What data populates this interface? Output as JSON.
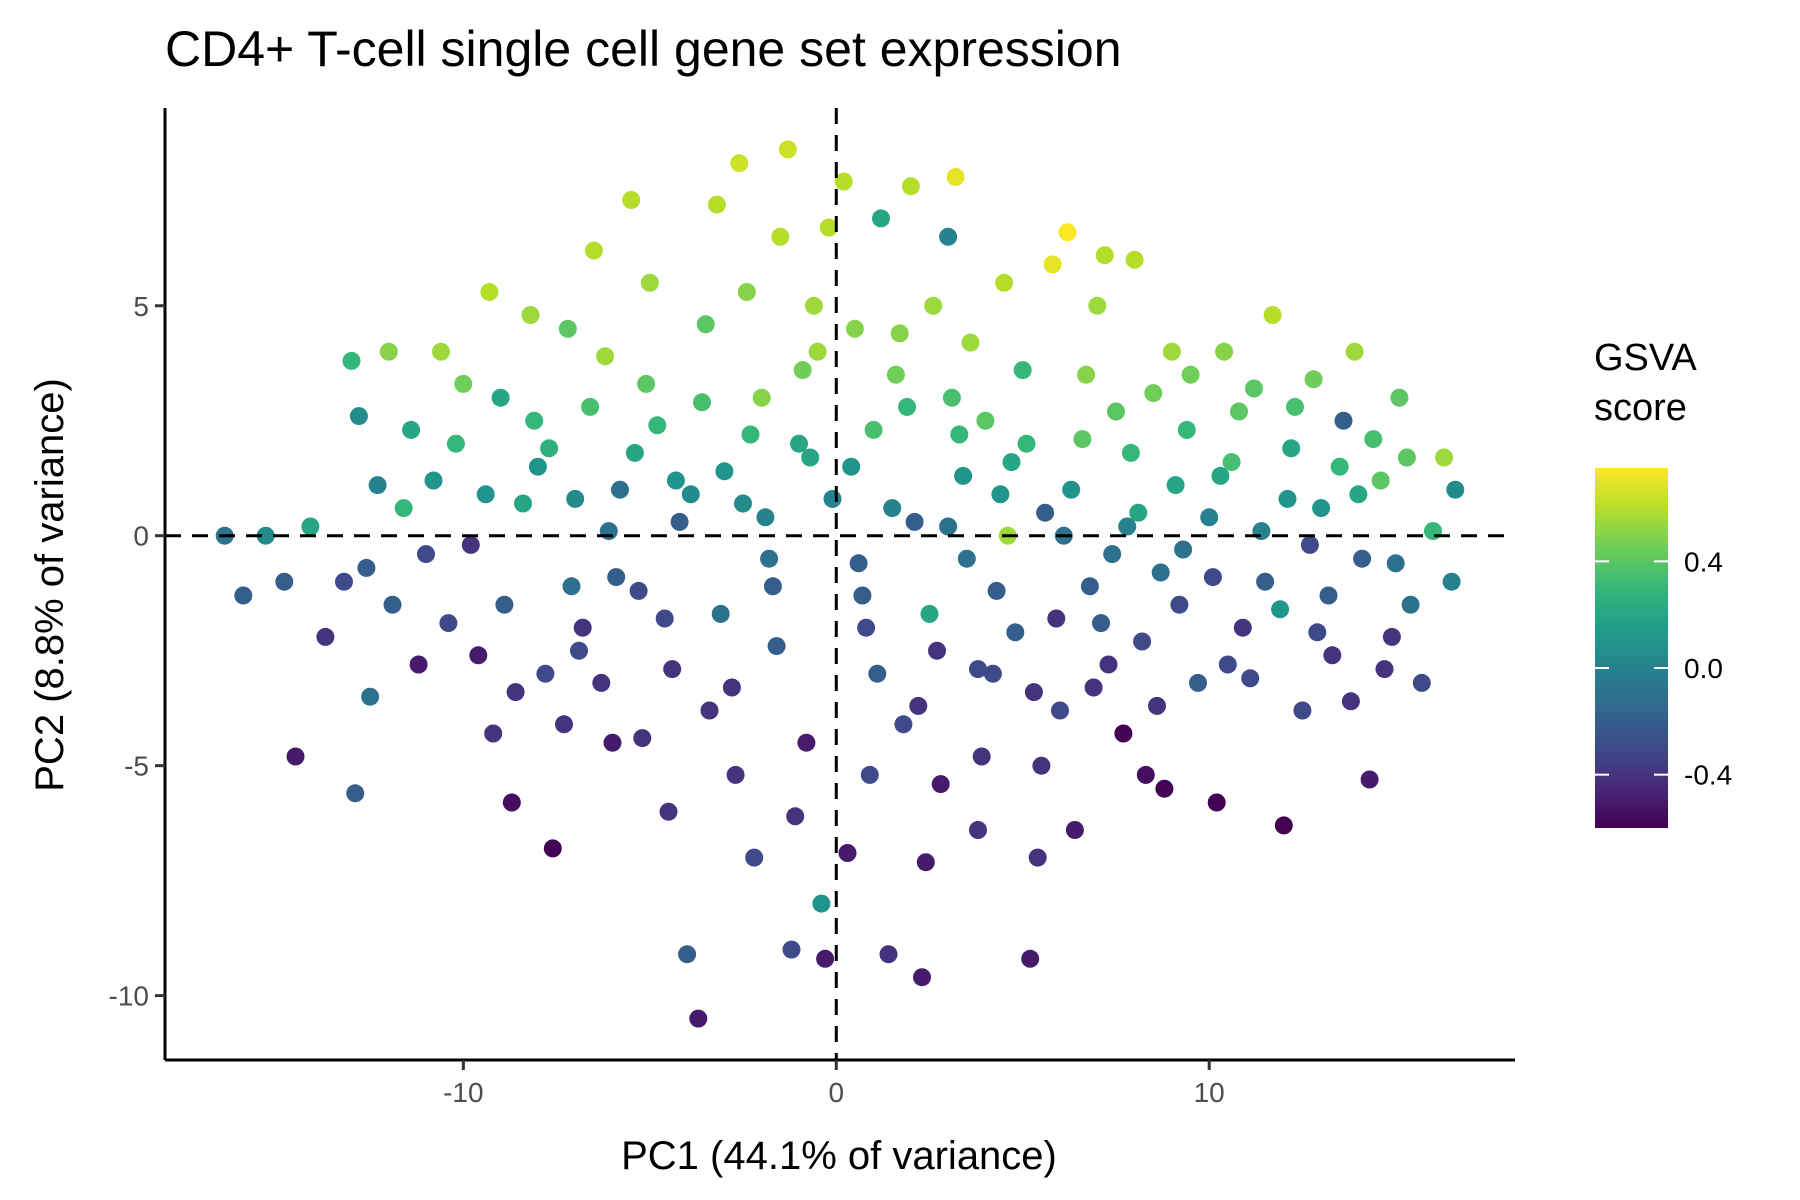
{
  "chart_data": {
    "type": "scatter",
    "title": "CD4+ T-cell single cell gene set expression",
    "xlabel": "PC1 (44.1% of variance)",
    "ylabel": "PC2 (8.8% of variance)",
    "xlim": [
      -18,
      18.2
    ],
    "ylim": [
      -11.4,
      9.3
    ],
    "x_ticks": [
      {
        "value": -10,
        "label": "-10"
      },
      {
        "value": 0,
        "label": "0"
      },
      {
        "value": 10,
        "label": "10"
      }
    ],
    "y_ticks": [
      {
        "value": -10,
        "label": "-10"
      },
      {
        "value": -5,
        "label": "-5"
      },
      {
        "value": 0,
        "label": "0"
      },
      {
        "value": 5,
        "label": "5"
      }
    ],
    "reference_lines": [
      {
        "orientation": "horizontal",
        "value": 0,
        "style": "dashed"
      },
      {
        "orientation": "vertical",
        "value": 0,
        "style": "dashed"
      }
    ],
    "grid": false,
    "color_scale": {
      "palette": "viridis",
      "title_lines": [
        "GSVA",
        "score"
      ],
      "min": -0.6,
      "max": 0.75,
      "ticks": [
        {
          "value": 0.4,
          "label": "0.4"
        },
        {
          "value": 0.0,
          "label": "0.0"
        },
        {
          "value": -0.4,
          "label": "-0.4"
        }
      ],
      "stops": [
        "#440154",
        "#482878",
        "#3e4a89",
        "#31688e",
        "#26828e",
        "#1f9e89",
        "#35b779",
        "#6ece58",
        "#b5de2b",
        "#fde725"
      ],
      "legend_position": "right"
    },
    "points": [
      [
        -16.4,
        0.0,
        -0.1
      ],
      [
        -15.3,
        0.0,
        0.05
      ],
      [
        -15.9,
        -1.3,
        -0.2
      ],
      [
        -14.1,
        0.2,
        0.2
      ],
      [
        -14.5,
        -4.8,
        -0.5
      ],
      [
        -13.0,
        3.8,
        0.3
      ],
      [
        -12.8,
        2.6,
        0.05
      ],
      [
        -13.2,
        -1.0,
        -0.3
      ],
      [
        -12.5,
        -3.5,
        -0.1
      ],
      [
        -12.9,
        -5.6,
        -0.2
      ],
      [
        -12.0,
        4.0,
        0.5
      ],
      [
        -11.6,
        0.6,
        0.3
      ],
      [
        -11.2,
        -2.8,
        -0.5
      ],
      [
        -10.6,
        4.0,
        0.55
      ],
      [
        -10.2,
        2.0,
        0.3
      ],
      [
        -9.8,
        -0.2,
        -0.4
      ],
      [
        -9.3,
        5.3,
        0.6
      ],
      [
        -9.0,
        3.0,
        0.2
      ],
      [
        -8.9,
        -1.5,
        -0.2
      ],
      [
        -8.7,
        -5.8,
        -0.55
      ],
      [
        -8.2,
        4.8,
        0.55
      ],
      [
        -8.0,
        1.5,
        0.1
      ],
      [
        -7.8,
        -3.0,
        -0.3
      ],
      [
        -7.6,
        -6.8,
        -0.6
      ],
      [
        -7.2,
        4.5,
        0.4
      ],
      [
        -7.0,
        0.8,
        0.05
      ],
      [
        -6.8,
        -2.0,
        -0.4
      ],
      [
        -6.5,
        6.2,
        0.6
      ],
      [
        -6.2,
        3.9,
        0.55
      ],
      [
        -6.0,
        -4.5,
        -0.5
      ],
      [
        -5.8,
        1.0,
        -0.1
      ],
      [
        -5.5,
        7.3,
        0.6
      ],
      [
        -5.3,
        -1.2,
        -0.3
      ],
      [
        -5.0,
        5.5,
        0.55
      ],
      [
        -4.8,
        2.4,
        0.3
      ],
      [
        -4.5,
        -6.0,
        -0.4
      ],
      [
        -4.2,
        0.3,
        -0.2
      ],
      [
        -4.0,
        -9.1,
        -0.2
      ],
      [
        -3.7,
        -10.5,
        -0.5
      ],
      [
        -3.5,
        4.6,
        0.4
      ],
      [
        -3.2,
        7.2,
        0.6
      ],
      [
        -3.0,
        1.4,
        0.1
      ],
      [
        -2.8,
        -3.3,
        -0.4
      ],
      [
        -2.6,
        8.1,
        0.65
      ],
      [
        -2.4,
        5.3,
        0.5
      ],
      [
        -2.2,
        -7.0,
        -0.3
      ],
      [
        -2.0,
        3.0,
        0.5
      ],
      [
        -1.8,
        -0.5,
        -0.1
      ],
      [
        -1.5,
        6.5,
        0.6
      ],
      [
        -1.3,
        8.4,
        0.65
      ],
      [
        -1.2,
        -9.0,
        -0.3
      ],
      [
        -1.0,
        2.0,
        0.2
      ],
      [
        -0.8,
        -4.5,
        -0.5
      ],
      [
        -0.6,
        5.0,
        0.55
      ],
      [
        -0.4,
        -8.0,
        0.1
      ],
      [
        -0.3,
        -9.2,
        -0.5
      ],
      [
        -0.2,
        6.7,
        0.6
      ],
      [
        -0.1,
        0.8,
        0.0
      ],
      [
        0.2,
        7.7,
        0.6
      ],
      [
        0.3,
        -6.9,
        -0.5
      ],
      [
        0.5,
        4.5,
        0.5
      ],
      [
        0.6,
        -0.6,
        -0.2
      ],
      [
        0.8,
        -2.0,
        -0.3
      ],
      [
        1.0,
        2.3,
        0.35
      ],
      [
        1.2,
        6.9,
        0.2
      ],
      [
        1.4,
        -9.1,
        -0.4
      ],
      [
        1.6,
        3.5,
        0.45
      ],
      [
        1.8,
        -4.1,
        -0.3
      ],
      [
        2.0,
        7.6,
        0.6
      ],
      [
        2.1,
        0.3,
        -0.2
      ],
      [
        2.3,
        -9.6,
        -0.5
      ],
      [
        2.5,
        -1.7,
        0.2
      ],
      [
        2.6,
        5.0,
        0.55
      ],
      [
        2.8,
        -5.4,
        -0.5
      ],
      [
        3.0,
        6.5,
        0.0
      ],
      [
        3.2,
        7.8,
        0.7
      ],
      [
        3.3,
        2.2,
        0.3
      ],
      [
        3.5,
        -0.5,
        -0.1
      ],
      [
        3.6,
        4.2,
        0.55
      ],
      [
        3.8,
        -6.4,
        -0.4
      ],
      [
        4.0,
        2.5,
        0.4
      ],
      [
        4.2,
        -3.0,
        -0.3
      ],
      [
        4.5,
        5.5,
        0.6
      ],
      [
        4.6,
        0.0,
        0.55
      ],
      [
        4.8,
        -2.1,
        -0.2
      ],
      [
        5.0,
        3.6,
        0.3
      ],
      [
        5.2,
        -9.2,
        -0.5
      ],
      [
        5.4,
        -7.0,
        -0.4
      ],
      [
        5.6,
        0.5,
        -0.2
      ],
      [
        5.8,
        5.9,
        0.7
      ],
      [
        6.0,
        -3.8,
        -0.3
      ],
      [
        6.2,
        6.6,
        0.75
      ],
      [
        6.4,
        -6.4,
        -0.5
      ],
      [
        6.6,
        2.1,
        0.4
      ],
      [
        6.8,
        -1.1,
        -0.2
      ],
      [
        7.0,
        5.0,
        0.55
      ],
      [
        7.2,
        6.1,
        0.6
      ],
      [
        7.3,
        -2.8,
        -0.4
      ],
      [
        7.5,
        2.7,
        0.4
      ],
      [
        7.7,
        -4.3,
        -0.6
      ],
      [
        8.0,
        6.0,
        0.6
      ],
      [
        8.1,
        0.5,
        0.2
      ],
      [
        8.3,
        -5.2,
        -0.55
      ],
      [
        8.5,
        3.1,
        0.45
      ],
      [
        8.8,
        -5.5,
        -0.6
      ],
      [
        9.0,
        4.0,
        0.55
      ],
      [
        9.2,
        -1.5,
        -0.3
      ],
      [
        9.4,
        2.3,
        0.3
      ],
      [
        9.7,
        -3.2,
        -0.2
      ],
      [
        10.0,
        0.4,
        0.0
      ],
      [
        10.2,
        -5.8,
        -0.6
      ],
      [
        10.4,
        4.0,
        0.5
      ],
      [
        10.6,
        1.6,
        0.35
      ],
      [
        10.9,
        -2.0,
        -0.4
      ],
      [
        11.2,
        3.2,
        0.4
      ],
      [
        11.5,
        -1.0,
        -0.2
      ],
      [
        11.7,
        4.8,
        0.6
      ],
      [
        12.0,
        -6.3,
        -0.6
      ],
      [
        12.2,
        1.9,
        0.2
      ],
      [
        12.5,
        -3.8,
        -0.3
      ],
      [
        12.8,
        3.4,
        0.45
      ],
      [
        13.0,
        0.6,
        0.1
      ],
      [
        13.3,
        -2.6,
        -0.4
      ],
      [
        13.6,
        2.5,
        -0.2
      ],
      [
        13.9,
        4.0,
        0.55
      ],
      [
        14.1,
        -0.5,
        -0.2
      ],
      [
        14.3,
        -5.3,
        -0.5
      ],
      [
        14.6,
        1.2,
        0.4
      ],
      [
        14.9,
        -2.2,
        -0.4
      ],
      [
        15.1,
        3.0,
        0.4
      ],
      [
        15.4,
        -1.5,
        -0.1
      ],
      [
        15.7,
        -3.2,
        -0.3
      ],
      [
        16.0,
        0.1,
        0.3
      ],
      [
        16.3,
        1.7,
        0.55
      ],
      [
        16.6,
        1.0,
        0.05
      ],
      [
        16.5,
        -1.0,
        0.0
      ],
      [
        -11.9,
        -1.5,
        -0.2
      ],
      [
        -10.8,
        1.2,
        0.1
      ],
      [
        -9.6,
        -2.6,
        -0.5
      ],
      [
        -8.4,
        0.7,
        0.2
      ],
      [
        -7.3,
        -4.1,
        -0.4
      ],
      [
        -6.6,
        2.8,
        0.35
      ],
      [
        -5.9,
        -0.9,
        -0.2
      ],
      [
        -5.1,
        3.3,
        0.4
      ],
      [
        -4.4,
        -2.9,
        -0.4
      ],
      [
        -3.9,
        0.9,
        0.05
      ],
      [
        -3.1,
        -1.7,
        -0.1
      ],
      [
        -2.3,
        2.2,
        0.3
      ],
      [
        -1.6,
        -2.4,
        -0.2
      ],
      [
        -0.9,
        3.6,
        0.45
      ],
      [
        0.4,
        1.5,
        0.1
      ],
      [
        1.1,
        -3.0,
        -0.2
      ],
      [
        1.9,
        2.8,
        0.3
      ],
      [
        2.7,
        -2.5,
        -0.4
      ],
      [
        3.4,
        1.3,
        0.1
      ],
      [
        4.3,
        -1.2,
        -0.2
      ],
      [
        5.1,
        2.0,
        0.3
      ],
      [
        5.9,
        -1.8,
        -0.4
      ],
      [
        6.7,
        3.5,
        0.5
      ],
      [
        7.4,
        -0.4,
        -0.1
      ],
      [
        8.2,
        -2.3,
        -0.3
      ],
      [
        9.1,
        1.1,
        0.2
      ],
      [
        10.1,
        -0.9,
        -0.3
      ],
      [
        10.8,
        2.7,
        0.4
      ],
      [
        11.9,
        -1.6,
        0.1
      ],
      [
        12.7,
        -0.2,
        -0.3
      ],
      [
        13.5,
        1.5,
        0.3
      ],
      [
        -14.8,
        -1.0,
        -0.2
      ],
      [
        -13.7,
        -2.2,
        -0.4
      ],
      [
        -12.3,
        1.1,
        0.0
      ],
      [
        -11.0,
        -0.4,
        -0.3
      ],
      [
        -10.0,
        3.3,
        0.45
      ],
      [
        -9.2,
        -4.3,
        -0.4
      ],
      [
        -8.1,
        2.5,
        0.3
      ],
      [
        -7.1,
        -1.1,
        -0.1
      ],
      [
        -6.3,
        -3.2,
        -0.4
      ],
      [
        -5.4,
        1.8,
        0.2
      ],
      [
        -4.6,
        -1.8,
        -0.3
      ],
      [
        -3.6,
        2.9,
        0.35
      ],
      [
        -2.7,
        -5.2,
        -0.4
      ],
      [
        -1.9,
        0.4,
        0.0
      ],
      [
        -1.1,
        -6.1,
        -0.4
      ],
      [
        -0.5,
        4.0,
        0.55
      ],
      [
        0.9,
        -5.2,
        -0.3
      ],
      [
        1.7,
        4.4,
        0.5
      ],
      [
        2.4,
        -7.1,
        -0.5
      ],
      [
        3.1,
        3.0,
        0.35
      ],
      [
        3.9,
        -4.8,
        -0.4
      ],
      [
        4.7,
        1.6,
        0.2
      ],
      [
        5.5,
        -5.0,
        -0.4
      ],
      [
        6.3,
        1.0,
        0.1
      ],
      [
        7.1,
        -1.9,
        -0.2
      ],
      [
        7.9,
        1.8,
        0.3
      ],
      [
        8.7,
        -0.8,
        -0.1
      ],
      [
        9.5,
        3.5,
        0.45
      ],
      [
        10.5,
        -2.8,
        -0.3
      ],
      [
        11.4,
        0.1,
        0.0
      ],
      [
        12.3,
        2.8,
        0.35
      ],
      [
        13.2,
        -1.3,
        -0.2
      ],
      [
        14.0,
        0.9,
        0.2
      ],
      [
        14.7,
        -2.9,
        -0.4
      ],
      [
        15.3,
        1.7,
        0.4
      ],
      [
        -12.6,
        -0.7,
        -0.2
      ],
      [
        -11.4,
        2.3,
        0.2
      ],
      [
        -10.4,
        -1.9,
        -0.3
      ],
      [
        -9.4,
        0.9,
        0.1
      ],
      [
        -8.6,
        -3.4,
        -0.4
      ],
      [
        -7.7,
        1.9,
        0.25
      ],
      [
        -6.9,
        -2.5,
        -0.3
      ],
      [
        -6.1,
        0.1,
        -0.1
      ],
      [
        -5.2,
        -4.4,
        -0.4
      ],
      [
        -4.3,
        1.2,
        0.1
      ],
      [
        -3.4,
        -3.8,
        -0.4
      ],
      [
        -2.5,
        0.7,
        0.05
      ],
      [
        -1.7,
        -1.1,
        -0.2
      ],
      [
        -0.7,
        1.7,
        0.2
      ],
      [
        0.7,
        -1.3,
        -0.2
      ],
      [
        1.5,
        0.6,
        0.0
      ],
      [
        2.2,
        -3.7,
        -0.4
      ],
      [
        3.0,
        0.2,
        -0.1
      ],
      [
        3.8,
        -2.9,
        -0.3
      ],
      [
        4.4,
        0.9,
        0.1
      ],
      [
        5.3,
        -3.4,
        -0.4
      ],
      [
        6.1,
        0.0,
        -0.1
      ],
      [
        6.9,
        -3.3,
        -0.4
      ],
      [
        7.8,
        0.2,
        0.0
      ],
      [
        8.6,
        -3.7,
        -0.4
      ],
      [
        9.3,
        -0.3,
        -0.1
      ],
      [
        10.3,
        1.3,
        0.2
      ],
      [
        11.1,
        -3.1,
        -0.3
      ],
      [
        12.1,
        0.8,
        0.1
      ],
      [
        12.9,
        -2.1,
        -0.3
      ],
      [
        13.8,
        -3.6,
        -0.4
      ],
      [
        14.4,
        2.1,
        0.35
      ],
      [
        15.0,
        -0.6,
        -0.1
      ]
    ]
  }
}
